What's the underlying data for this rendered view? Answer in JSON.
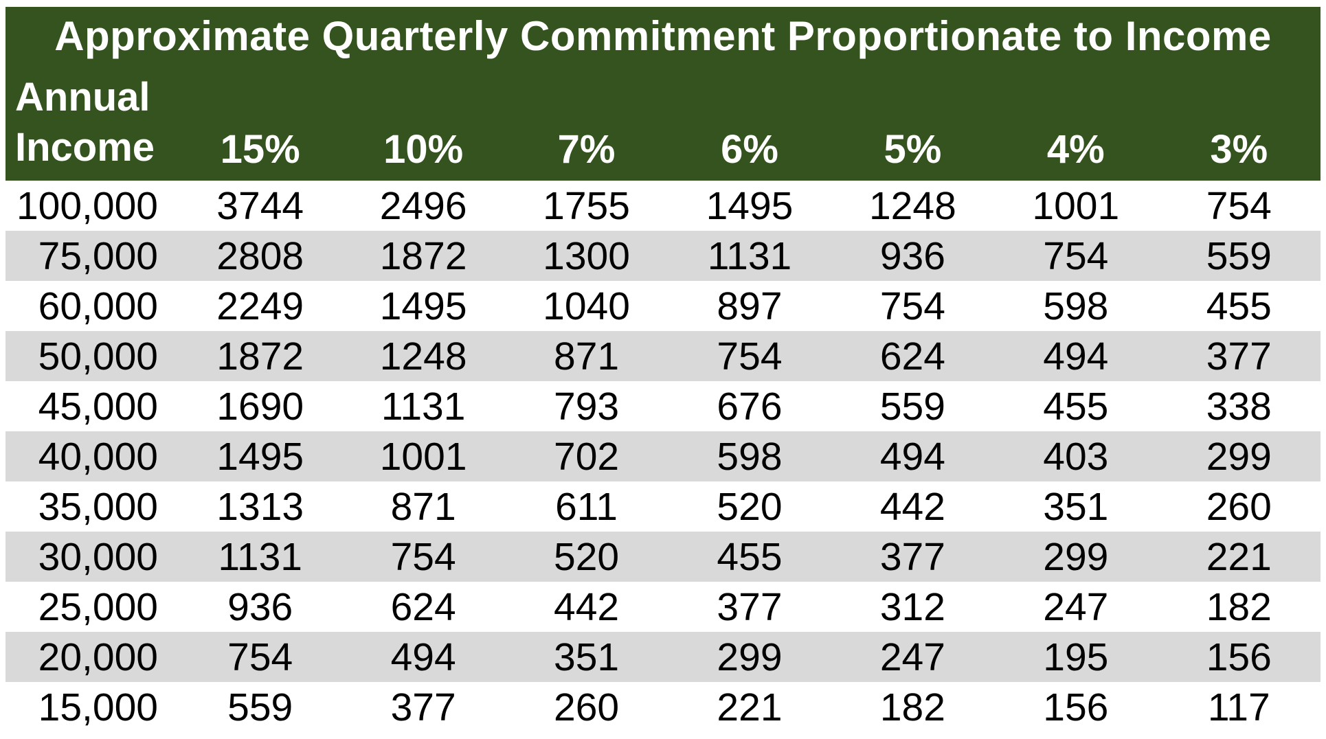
{
  "title": "Approximate Quarterly Commitment Proportionate to Income",
  "colors": {
    "header_green": "#35531F",
    "stripe_gray": "#D9D9D9",
    "row_white": "#FFFFFF",
    "header_text": "#FFFFFF",
    "data_text": "#000000"
  },
  "header": {
    "annual_line1": "Annual",
    "annual_line2": "Income"
  },
  "chart_data": {
    "type": "table",
    "title": "Approximate Quarterly Commitment Proportionate to Income",
    "columns": [
      "Annual Income",
      "15%",
      "10%",
      "7%",
      "6%",
      "5%",
      "4%",
      "3%"
    ],
    "rows": [
      [
        "100,000",
        "3744",
        "2496",
        "1755",
        "1495",
        "1248",
        "1001",
        "754"
      ],
      [
        "75,000",
        "2808",
        "1872",
        "1300",
        "1131",
        "936",
        "754",
        "559"
      ],
      [
        "60,000",
        "2249",
        "1495",
        "1040",
        "897",
        "754",
        "598",
        "455"
      ],
      [
        "50,000",
        "1872",
        "1248",
        "871",
        "754",
        "624",
        "494",
        "377"
      ],
      [
        "45,000",
        "1690",
        "1131",
        "793",
        "676",
        "559",
        "455",
        "338"
      ],
      [
        "40,000",
        "1495",
        "1001",
        "702",
        "598",
        "494",
        "403",
        "299"
      ],
      [
        "35,000",
        "1313",
        "871",
        "611",
        "520",
        "442",
        "351",
        "260"
      ],
      [
        "30,000",
        "1131",
        "754",
        "520",
        "455",
        "377",
        "299",
        "221"
      ],
      [
        "25,000",
        "936",
        "624",
        "442",
        "377",
        "312",
        "247",
        "182"
      ],
      [
        "20,000",
        "754",
        "494",
        "351",
        "299",
        "247",
        "195",
        "156"
      ],
      [
        "15,000",
        "559",
        "377",
        "260",
        "221",
        "182",
        "156",
        "117"
      ]
    ],
    "layout": {
      "row_banding": [
        "white",
        "gray"
      ],
      "first_column_align": "right",
      "value_align": "center",
      "header_background": "#35531F"
    }
  }
}
